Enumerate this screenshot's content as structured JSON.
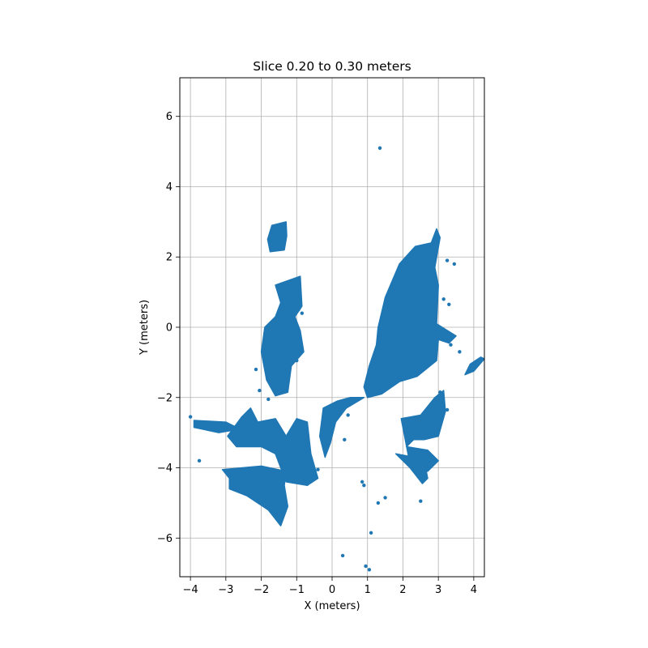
{
  "chart_data": {
    "type": "scatter",
    "title": "Slice 0.20 to 0.30 meters",
    "xlabel": "X (meters)",
    "ylabel": "Y (meters)",
    "xlim": [
      -4.3,
      4.3
    ],
    "ylim": [
      -7.1,
      7.1
    ],
    "xticks": [
      -4,
      -3,
      -2,
      -1,
      0,
      1,
      2,
      3,
      4
    ],
    "yticks": [
      -6,
      -4,
      -2,
      0,
      2,
      4,
      6
    ],
    "xtick_labels": [
      "−4",
      "−3",
      "−2",
      "−1",
      "0",
      "1",
      "2",
      "3",
      "4"
    ],
    "ytick_labels": [
      "−6",
      "−4",
      "−2",
      "0",
      "2",
      "4",
      "6"
    ],
    "grid": true,
    "marker_color": "#1f77b4",
    "series": [
      {
        "points_description": "dense point cloud slice",
        "regions": [
          {
            "region": "left_top_blob",
            "polygon": [
              [
                -1.82,
                2.5
              ],
              [
                -1.7,
                2.9
              ],
              [
                -1.3,
                3.0
              ],
              [
                -1.28,
                2.6
              ],
              [
                -1.35,
                2.2
              ],
              [
                -1.75,
                2.15
              ]
            ]
          },
          {
            "region": "left_upper_body",
            "polygon": [
              [
                -1.6,
                1.2
              ],
              [
                -0.9,
                1.45
              ],
              [
                -0.85,
                0.6
              ],
              [
                -1.05,
                0.3
              ],
              [
                -0.9,
                -0.1
              ],
              [
                -0.8,
                -0.7
              ],
              [
                -1.15,
                -1.1
              ],
              [
                -1.25,
                -1.85
              ],
              [
                -1.6,
                -1.95
              ],
              [
                -1.85,
                -1.5
              ],
              [
                -2.0,
                -0.7
              ],
              [
                -1.9,
                0.0
              ],
              [
                -1.6,
                0.3
              ],
              [
                -1.45,
                0.7
              ]
            ]
          },
          {
            "region": "left_lower_band",
            "polygon": [
              [
                -2.55,
                -2.55
              ],
              [
                -2.3,
                -2.3
              ],
              [
                -2.1,
                -2.7
              ],
              [
                -1.6,
                -2.6
              ],
              [
                -1.3,
                -3.1
              ],
              [
                -1.0,
                -2.6
              ],
              [
                -0.7,
                -2.7
              ],
              [
                -0.6,
                -3.6
              ],
              [
                -0.4,
                -4.3
              ],
              [
                -0.7,
                -4.5
              ],
              [
                -1.3,
                -4.4
              ],
              [
                -1.6,
                -3.6
              ],
              [
                -2.0,
                -3.4
              ],
              [
                -2.7,
                -3.4
              ],
              [
                -2.95,
                -3.1
              ]
            ]
          },
          {
            "region": "left_tail",
            "polygon": [
              [
                -3.9,
                -2.65
              ],
              [
                -3.0,
                -2.7
              ],
              [
                -2.6,
                -2.9
              ],
              [
                -3.2,
                -3.0
              ],
              [
                -3.9,
                -2.85
              ]
            ]
          },
          {
            "region": "left_bottom",
            "polygon": [
              [
                -3.1,
                -4.05
              ],
              [
                -2.0,
                -3.95
              ],
              [
                -1.3,
                -4.1
              ],
              [
                -1.35,
                -4.5
              ],
              [
                -1.25,
                -5.1
              ],
              [
                -1.45,
                -5.65
              ],
              [
                -1.8,
                -5.2
              ],
              [
                -2.4,
                -4.8
              ],
              [
                -2.9,
                -4.6
              ],
              [
                -2.9,
                -4.3
              ]
            ]
          },
          {
            "region": "center_stem",
            "polygon": [
              [
                -0.25,
                -2.3
              ],
              [
                0.15,
                -2.1
              ],
              [
                0.5,
                -2.0
              ],
              [
                0.9,
                -2.0
              ],
              [
                0.4,
                -2.3
              ],
              [
                0.1,
                -2.7
              ],
              [
                -0.05,
                -3.3
              ],
              [
                -0.2,
                -3.7
              ],
              [
                -0.35,
                -3.1
              ]
            ]
          },
          {
            "region": "right_main_body",
            "polygon": [
              [
                1.3,
                0.0
              ],
              [
                1.5,
                0.85
              ],
              [
                1.9,
                1.8
              ],
              [
                2.35,
                2.3
              ],
              [
                2.8,
                2.4
              ],
              [
                2.95,
                2.8
              ],
              [
                3.05,
                2.55
              ],
              [
                2.9,
                1.7
              ],
              [
                3.0,
                1.2
              ],
              [
                2.95,
                0.1
              ],
              [
                3.5,
                -0.25
              ],
              [
                3.3,
                -0.45
              ],
              [
                3.0,
                -0.35
              ],
              [
                2.95,
                -0.95
              ],
              [
                2.4,
                -1.4
              ],
              [
                1.9,
                -1.55
              ],
              [
                1.4,
                -1.9
              ],
              [
                1.0,
                -2.0
              ],
              [
                0.9,
                -1.7
              ],
              [
                1.05,
                -1.1
              ],
              [
                1.25,
                -0.5
              ]
            ]
          },
          {
            "region": "right_lower_arms",
            "polygon": [
              [
                1.95,
                -2.6
              ],
              [
                2.5,
                -2.5
              ],
              [
                2.9,
                -2.0
              ],
              [
                3.15,
                -1.8
              ],
              [
                3.2,
                -2.4
              ],
              [
                3.0,
                -3.1
              ],
              [
                2.6,
                -3.2
              ],
              [
                2.3,
                -3.2
              ],
              [
                2.1,
                -3.4
              ],
              [
                2.7,
                -3.5
              ],
              [
                3.0,
                -3.8
              ],
              [
                2.7,
                -4.1
              ],
              [
                2.2,
                -3.9
              ]
            ]
          },
          {
            "region": "right_bottom_blob",
            "polygon": [
              [
                1.8,
                -3.6
              ],
              [
                2.3,
                -3.7
              ],
              [
                2.6,
                -3.8
              ],
              [
                2.7,
                -4.3
              ],
              [
                2.55,
                -4.45
              ],
              [
                2.2,
                -4.0
              ]
            ]
          },
          {
            "region": "far_right_arm",
            "polygon": [
              [
                3.9,
                -1.05
              ],
              [
                4.2,
                -0.85
              ],
              [
                4.3,
                -0.9
              ],
              [
                4.0,
                -1.25
              ],
              [
                3.75,
                -1.35
              ]
            ]
          }
        ],
        "scattered_points": [
          [
            1.35,
            5.1
          ],
          [
            -4.0,
            -2.55
          ],
          [
            -3.75,
            -3.8
          ],
          [
            0.35,
            -3.2
          ],
          [
            0.85,
            -4.4
          ],
          [
            0.9,
            -4.5
          ],
          [
            1.5,
            -4.85
          ],
          [
            1.3,
            -5.0
          ],
          [
            1.1,
            -5.85
          ],
          [
            0.3,
            -6.5
          ],
          [
            0.95,
            -6.8
          ],
          [
            1.05,
            -6.9
          ],
          [
            2.5,
            -4.95
          ],
          [
            3.25,
            -2.35
          ],
          [
            3.1,
            -2.6
          ],
          [
            3.05,
            -1.85
          ],
          [
            3.35,
            -0.5
          ],
          [
            3.6,
            -0.7
          ],
          [
            3.45,
            1.8
          ],
          [
            3.25,
            1.9
          ],
          [
            3.15,
            0.8
          ],
          [
            3.3,
            0.65
          ],
          [
            -0.95,
            0.5
          ],
          [
            -0.85,
            0.4
          ],
          [
            -1.0,
            -0.95
          ],
          [
            -2.15,
            -1.2
          ],
          [
            -2.05,
            -1.8
          ],
          [
            -1.8,
            -2.05
          ],
          [
            -1.45,
            -4.85
          ],
          [
            -1.75,
            -4.95
          ],
          [
            -0.4,
            -4.05
          ],
          [
            0.45,
            -2.5
          ]
        ]
      }
    ]
  }
}
